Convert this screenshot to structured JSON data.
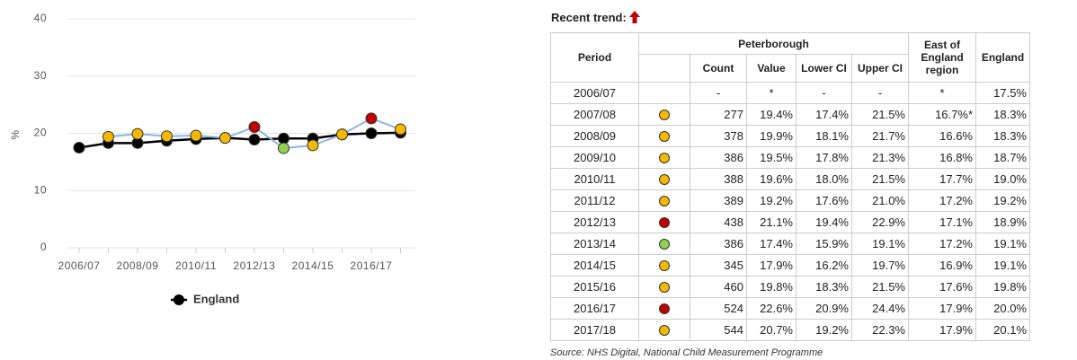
{
  "chart_data": {
    "type": "line",
    "y_label": "%",
    "categories": [
      "2006/07",
      null,
      "2008/09",
      null,
      "2010/11",
      null,
      "2012/13",
      null,
      "2014/15",
      null,
      "2016/17",
      null
    ],
    "ylim": [
      0,
      40
    ],
    "yticks": [
      0,
      10,
      20,
      30,
      40
    ],
    "grid": true,
    "legend": "bottom",
    "series": [
      {
        "name": "England",
        "color": "#000000",
        "values": [
          17.5,
          18.3,
          18.3,
          18.7,
          19.0,
          19.2,
          18.9,
          19.1,
          19.1,
          19.8,
          20.0,
          20.1
        ]
      },
      {
        "color": "#8ab4e6",
        "values": [
          null,
          19.4,
          19.9,
          19.5,
          19.6,
          19.2,
          21.1,
          17.4,
          17.9,
          19.8,
          22.6,
          20.7
        ],
        "point_colors": [
          null,
          "#f5b800",
          "#f5b800",
          "#f5b800",
          "#f5b800",
          "#f5b800",
          "#c00000",
          "#92d050",
          "#f5b800",
          "#f5b800",
          "#c00000",
          "#f5b800"
        ]
      }
    ]
  },
  "trend_label": "Recent trend:",
  "table": {
    "headers": {
      "period": "Period",
      "group": "Peterborough",
      "region": "East of England region",
      "england": "England",
      "sub": [
        "Count",
        "Value",
        "Lower CI",
        "Upper CI"
      ]
    },
    "rows": [
      [
        "2006/07",
        "-",
        "*",
        "-",
        "-",
        "*",
        "17.5%"
      ],
      [
        "2007/08",
        "277",
        "19.4%",
        "17.4%",
        "21.5%",
        "16.7%*",
        "18.3%"
      ],
      [
        "2008/09",
        "378",
        "19.9%",
        "18.1%",
        "21.7%",
        "16.6%",
        "18.3%"
      ],
      [
        "2009/10",
        "386",
        "19.5%",
        "17.8%",
        "21.3%",
        "16.8%",
        "18.7%"
      ],
      [
        "2010/11",
        "388",
        "19.6%",
        "18.0%",
        "21.5%",
        "17.7%",
        "19.0%"
      ],
      [
        "2011/12",
        "389",
        "19.2%",
        "17.6%",
        "21.0%",
        "17.2%",
        "19.2%"
      ],
      [
        "2012/13",
        "438",
        "21.1%",
        "19.4%",
        "22.9%",
        "17.1%",
        "18.9%"
      ],
      [
        "2013/14",
        "386",
        "17.4%",
        "15.9%",
        "19.1%",
        "17.2%",
        "19.1%"
      ],
      [
        "2014/15",
        "345",
        "17.9%",
        "16.2%",
        "19.7%",
        "16.9%",
        "19.1%"
      ],
      [
        "2015/16",
        "460",
        "19.8%",
        "18.3%",
        "21.5%",
        "17.6%",
        "19.8%"
      ],
      [
        "2016/17",
        "524",
        "22.6%",
        "20.9%",
        "24.4%",
        "17.9%",
        "20.0%"
      ],
      [
        "2017/18",
        "544",
        "20.7%",
        "19.2%",
        "22.3%",
        "17.9%",
        "20.1%"
      ]
    ]
  },
  "source": "Source: NHS Digital, National Child Measurement Programme"
}
